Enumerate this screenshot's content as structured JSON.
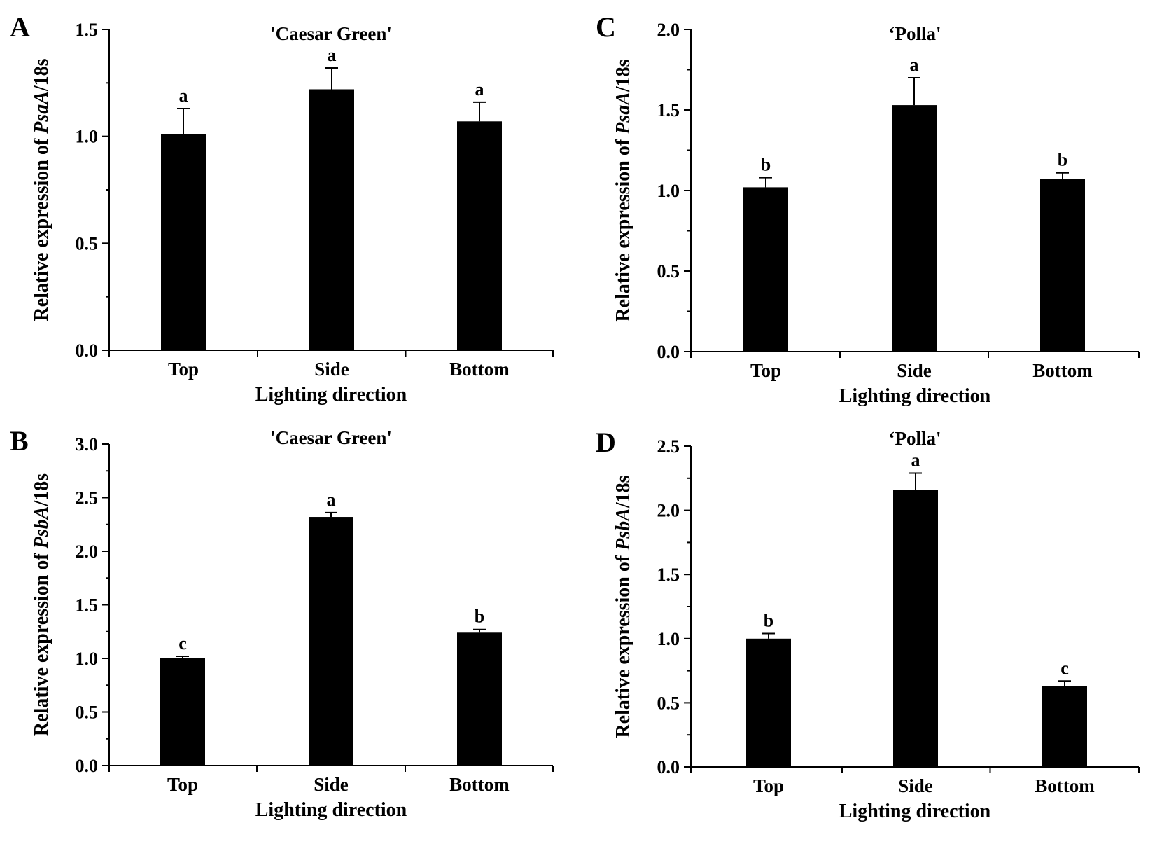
{
  "chart_data": [
    {
      "panel": "A",
      "type": "bar",
      "title": "'Caesar Green'",
      "ylabel_prefix": "Relative expression of ",
      "ylabel_gene": "PsaA",
      "ylabel_suffix": "/18s",
      "xlabel": "Lighting direction",
      "categories": [
        "Top",
        "Side",
        "Bottom"
      ],
      "values": [
        1.01,
        1.22,
        1.07
      ],
      "errors": [
        0.12,
        0.1,
        0.09
      ],
      "significance": [
        "a",
        "a",
        "a"
      ],
      "ylim": [
        0,
        1.5
      ],
      "yticks": [
        0.0,
        0.5,
        1.0,
        1.5
      ],
      "ytick_labels": [
        "0.0",
        "0.5",
        "1.0",
        "1.5"
      ]
    },
    {
      "panel": "B",
      "type": "bar",
      "title": "'Caesar Green'",
      "ylabel_prefix": "Relative expression of ",
      "ylabel_gene": "PsbA",
      "ylabel_suffix": "/18s",
      "xlabel": "Lighting direction",
      "categories": [
        "Top",
        "Side",
        "Bottom"
      ],
      "values": [
        1.0,
        2.32,
        1.24
      ],
      "errors": [
        0.02,
        0.04,
        0.03
      ],
      "significance": [
        "c",
        "a",
        "b"
      ],
      "ylim": [
        0,
        3.0
      ],
      "yticks": [
        0.0,
        0.5,
        1.0,
        1.5,
        2.0,
        2.5,
        3.0
      ],
      "ytick_labels": [
        "0.0",
        "0.5",
        "1.0",
        "1.5",
        "2.0",
        "2.5",
        "3.0"
      ]
    },
    {
      "panel": "C",
      "type": "bar",
      "title": "‘Polla'",
      "ylabel_prefix": "Relative expression of ",
      "ylabel_gene": "PsaA",
      "ylabel_suffix": "/18s",
      "xlabel": "Lighting direction",
      "categories": [
        "Top",
        "Side",
        "Bottom"
      ],
      "values": [
        1.02,
        1.53,
        1.07
      ],
      "errors": [
        0.06,
        0.17,
        0.04
      ],
      "significance": [
        "b",
        "a",
        "b"
      ],
      "ylim": [
        0,
        2.0
      ],
      "yticks": [
        0.0,
        0.5,
        1.0,
        1.5,
        2.0
      ],
      "ytick_labels": [
        "0.0",
        "0.5",
        "1.0",
        "1.5",
        "2.0"
      ]
    },
    {
      "panel": "D",
      "type": "bar",
      "title": "‘Polla'",
      "ylabel_prefix": "Relative expression of ",
      "ylabel_gene": "PsbA",
      "ylabel_suffix": "/18s",
      "xlabel": "Lighting direction",
      "categories": [
        "Top",
        "Side",
        "Bottom"
      ],
      "values": [
        1.0,
        2.16,
        0.63
      ],
      "errors": [
        0.04,
        0.13,
        0.04
      ],
      "significance": [
        "b",
        "a",
        "c"
      ],
      "ylim": [
        0,
        2.5
      ],
      "yticks": [
        0.0,
        0.5,
        1.0,
        1.5,
        2.0,
        2.5
      ],
      "ytick_labels": [
        "0.0",
        "0.5",
        "1.0",
        "1.5",
        "2.0",
        "2.5"
      ]
    }
  ],
  "colors": {
    "bar": "#000000",
    "axis": "#000000",
    "background": "#ffffff"
  }
}
